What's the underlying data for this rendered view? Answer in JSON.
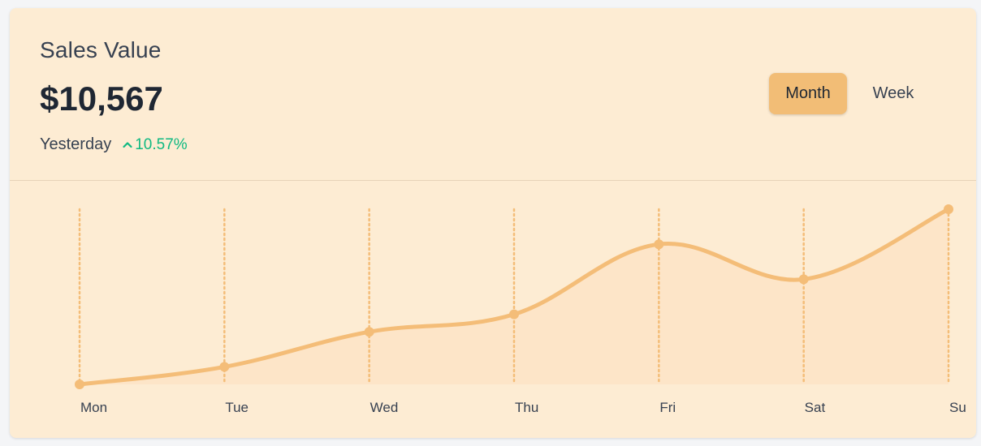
{
  "card": {
    "title": "Sales Value",
    "value": "$10,567",
    "period_label": "Yesterday",
    "change": "10.57%",
    "toggles": {
      "month_label": "Month",
      "week_label": "Week",
      "active": "Month"
    }
  },
  "colors": {
    "card_bg": "#fdecd3",
    "line": "#f4bd78",
    "area": "#fde5c8",
    "gridline": "#f4bd78",
    "positive": "#10b981",
    "active_toggle": "#f2bd76"
  },
  "icons": {
    "change_icon": "chevron-up-icon"
  },
  "chart_data": {
    "type": "area",
    "categories": [
      "Mon",
      "Tue",
      "Wed",
      "Thu",
      "Fri",
      "Sat",
      "Su"
    ],
    "series": [
      {
        "name": "Sales",
        "values": [
          0,
          10,
          30,
          40,
          80,
          60,
          100
        ]
      }
    ],
    "ylim": [
      0,
      100
    ],
    "grid": "vertical-dotted",
    "smooth": true,
    "title": "",
    "xlabel": "",
    "ylabel": ""
  }
}
